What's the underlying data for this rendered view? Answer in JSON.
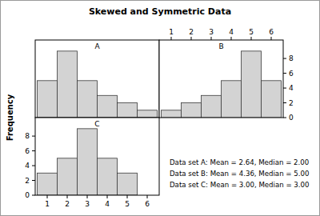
{
  "title": "Skewed and Symmetric Data",
  "ylabel": "Frequency",
  "annotations": [
    "Data set A: Mean = 2.64, Median = 2.00",
    "Data set B: Mean = 4.36, Median = 5.00",
    "Data set C: Mean = 3.00, Median = 3.00"
  ],
  "chart_data": [
    {
      "type": "histogram",
      "title": "A",
      "bins": [
        0.5,
        1.5,
        2.5,
        3.5,
        4.5,
        5.5,
        6.5
      ],
      "values": [
        5,
        9,
        5,
        3,
        2,
        1
      ],
      "color": "#d3d3d3",
      "xlim": [
        0.4,
        6.6
      ],
      "ylim": [
        0,
        10.5
      ],
      "tick_labels": false
    },
    {
      "type": "histogram",
      "title": "B",
      "bins": [
        0.5,
        1.5,
        2.5,
        3.5,
        4.5,
        5.5,
        6.5
      ],
      "values": [
        1,
        2,
        3,
        5,
        9,
        5
      ],
      "color": "#d3d3d3",
      "xlim": [
        0.4,
        6.6
      ],
      "xticks": [
        1,
        2,
        3,
        4,
        5,
        6
      ],
      "ylim": [
        0,
        10.5
      ],
      "yticks": [
        0,
        2,
        4,
        6,
        8
      ]
    },
    {
      "type": "histogram",
      "title": "C",
      "bins": [
        0.5,
        1.5,
        2.5,
        3.5,
        4.5,
        5.5,
        6.5
      ],
      "values": [
        3,
        5,
        9,
        5,
        3,
        0
      ],
      "color": "#d3d3d3",
      "xlim": [
        0.4,
        6.6
      ],
      "xticks": [
        1,
        2,
        3,
        4,
        5,
        6
      ],
      "ylim": [
        0,
        10.5
      ],
      "yticks": [
        0,
        2,
        4,
        6,
        8
      ]
    }
  ]
}
